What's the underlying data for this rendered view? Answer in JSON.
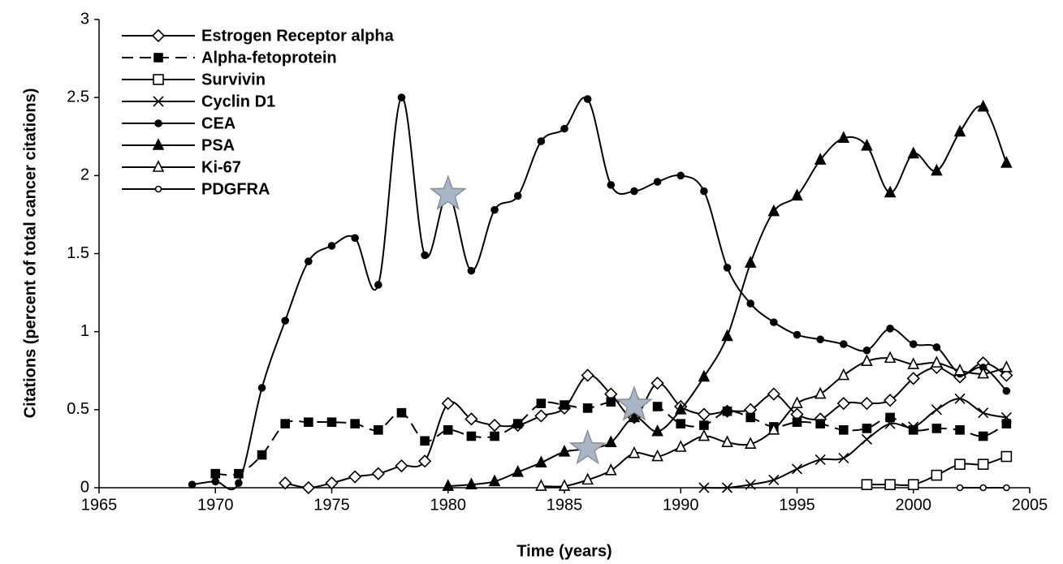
{
  "chart_data": {
    "type": "line",
    "xlabel": "Time (years)",
    "ylabel": "Citations (percent of total cancer citations)",
    "xlim": [
      1965,
      2005
    ],
    "xticks": [
      1965,
      1970,
      1975,
      1980,
      1985,
      1990,
      1995,
      2000,
      2005
    ],
    "ylim": [
      0,
      3
    ],
    "yticks": [
      0,
      0.5,
      1,
      1.5,
      2,
      2.5,
      3
    ],
    "legend": "upper left",
    "series": [
      {
        "name": "Estrogen Receptor alpha",
        "color": "#000000",
        "marker": "diamond-open",
        "dash": false,
        "x": [
          1973,
          1974,
          1975,
          1976,
          1977,
          1978,
          1979,
          1980,
          1981,
          1982,
          1983,
          1984,
          1985,
          1986,
          1987,
          1988,
          1989,
          1990,
          1991,
          1992,
          1993,
          1994,
          1995,
          1996,
          1997,
          1998,
          1999,
          2000,
          2001,
          2002,
          2003,
          2004
        ],
        "values": [
          0.03,
          0.0,
          0.03,
          0.07,
          0.09,
          0.14,
          0.17,
          0.54,
          0.44,
          0.4,
          0.4,
          0.46,
          0.51,
          0.72,
          0.6,
          0.45,
          0.67,
          0.52,
          0.47,
          0.49,
          0.5,
          0.6,
          0.47,
          0.44,
          0.54,
          0.54,
          0.56,
          0.7,
          0.77,
          0.71,
          0.8,
          0.72
        ]
      },
      {
        "name": "Alpha-fetoprotein",
        "color": "#000000",
        "marker": "square-filled",
        "dash": true,
        "x": [
          1970,
          1971,
          1972,
          1973,
          1974,
          1975,
          1976,
          1977,
          1978,
          1979,
          1980,
          1981,
          1982,
          1983,
          1984,
          1985,
          1986,
          1987,
          1988,
          1989,
          1990,
          1991,
          1992,
          1993,
          1994,
          1995,
          1996,
          1997,
          1998,
          1999,
          2000,
          2001,
          2002,
          2003,
          2004
        ],
        "values": [
          0.09,
          0.09,
          0.21,
          0.41,
          0.42,
          0.42,
          0.41,
          0.37,
          0.48,
          0.3,
          0.37,
          0.33,
          0.33,
          0.41,
          0.54,
          0.53,
          0.51,
          0.55,
          0.55,
          0.52,
          0.41,
          0.4,
          0.49,
          0.45,
          0.39,
          0.42,
          0.41,
          0.37,
          0.38,
          0.45,
          0.37,
          0.38,
          0.37,
          0.33,
          0.41
        ]
      },
      {
        "name": "Survivin",
        "color": "#000000",
        "marker": "square-open",
        "dash": false,
        "x": [
          1998,
          1999,
          2000,
          2001,
          2002,
          2003,
          2004
        ],
        "values": [
          0.02,
          0.02,
          0.02,
          0.08,
          0.15,
          0.15,
          0.2
        ]
      },
      {
        "name": "Cyclin D1",
        "color": "#000000",
        "marker": "cross",
        "dash": false,
        "x": [
          1991,
          1992,
          1993,
          1994,
          1995,
          1996,
          1997,
          1998,
          1999,
          2000,
          2001,
          2002,
          2003,
          2004
        ],
        "values": [
          0,
          0,
          0.02,
          0.05,
          0.12,
          0.18,
          0.19,
          0.31,
          0.41,
          0.39,
          0.5,
          0.57,
          0.48,
          0.45
        ]
      },
      {
        "name": "CEA",
        "color": "#000000",
        "marker": "circle-filled",
        "dash": false,
        "x": [
          1969,
          1970,
          1971,
          1972,
          1973,
          1974,
          1975,
          1976,
          1977,
          1978,
          1979,
          1980,
          1981,
          1982,
          1983,
          1984,
          1985,
          1986,
          1987,
          1988,
          1989,
          1990,
          1991,
          1992,
          1993,
          1994,
          1995,
          1996,
          1997,
          1998,
          1999,
          2000,
          2001,
          2002,
          2003,
          2004
        ],
        "values": [
          0.02,
          0.04,
          0.03,
          0.64,
          1.07,
          1.45,
          1.55,
          1.6,
          1.3,
          2.5,
          1.49,
          1.88,
          1.39,
          1.78,
          1.87,
          2.22,
          2.3,
          2.49,
          1.94,
          1.9,
          1.96,
          2.0,
          1.9,
          1.41,
          1.18,
          1.06,
          0.98,
          0.95,
          0.92,
          0.88,
          1.02,
          0.92,
          0.9,
          0.73,
          0.77,
          0.62
        ]
      },
      {
        "name": "PSA",
        "color": "#000000",
        "marker": "triangle-filled",
        "dash": false,
        "x": [
          1980,
          1981,
          1982,
          1983,
          1984,
          1985,
          1986,
          1987,
          1988,
          1989,
          1990,
          1991,
          1992,
          1993,
          1994,
          1995,
          1996,
          1997,
          1998,
          1999,
          2000,
          2001,
          2002,
          2003,
          2004
        ],
        "values": [
          0.01,
          0.02,
          0.04,
          0.1,
          0.16,
          0.23,
          0.25,
          0.29,
          0.45,
          0.36,
          0.5,
          0.71,
          0.97,
          1.44,
          1.77,
          1.87,
          2.1,
          2.24,
          2.19,
          1.89,
          2.14,
          2.03,
          2.28,
          2.44,
          2.08
        ]
      },
      {
        "name": "Ki-67",
        "color": "#000000",
        "marker": "triangle-open",
        "dash": false,
        "x": [
          1984,
          1985,
          1986,
          1987,
          1988,
          1989,
          1990,
          1991,
          1992,
          1993,
          1994,
          1995,
          1996,
          1997,
          1998,
          1999,
          2000,
          2001,
          2002,
          2003,
          2004
        ],
        "values": [
          0.01,
          0.01,
          0.05,
          0.11,
          0.22,
          0.2,
          0.26,
          0.33,
          0.29,
          0.28,
          0.37,
          0.54,
          0.6,
          0.72,
          0.81,
          0.83,
          0.79,
          0.8,
          0.75,
          0.73,
          0.77
        ]
      },
      {
        "name": "PDGFRA",
        "color": "#000000",
        "marker": "circle-open",
        "dash": false,
        "x": [
          2002,
          2003,
          2004
        ],
        "values": [
          0,
          0,
          0
        ]
      }
    ],
    "highlights": [
      {
        "x": 1980,
        "y": 1.88
      },
      {
        "x": 1986,
        "y": 0.25
      },
      {
        "x": 1988,
        "y": 0.53
      }
    ]
  }
}
